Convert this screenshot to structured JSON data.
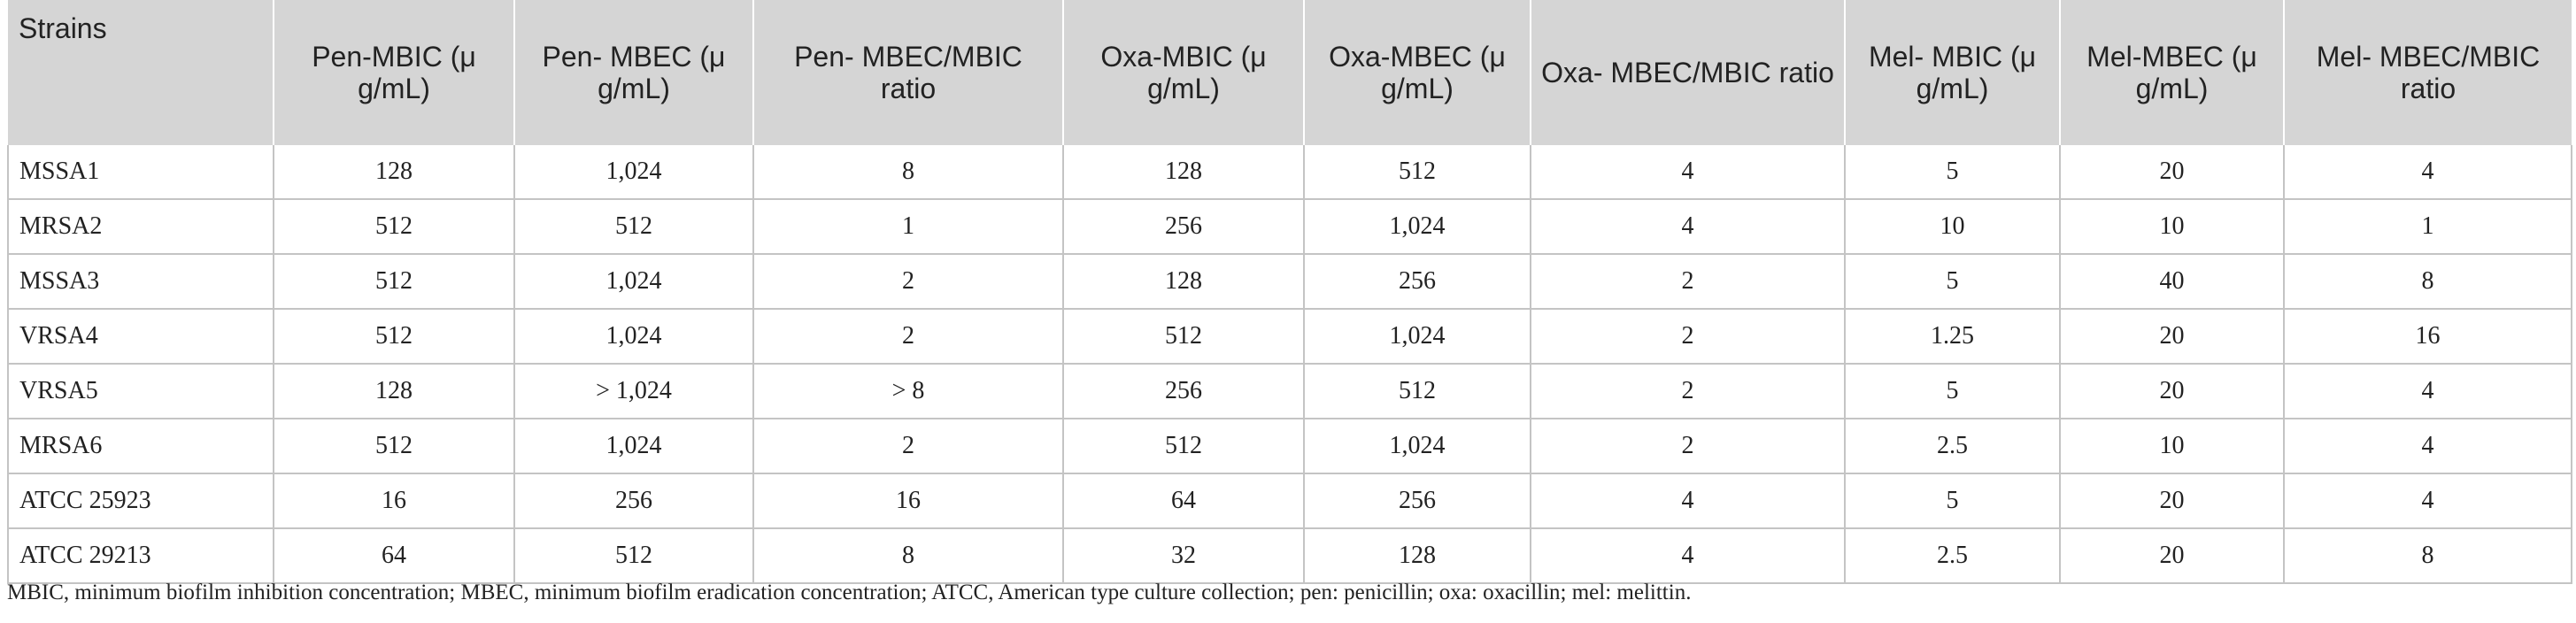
{
  "table": {
    "headers": [
      "Strains",
      "Pen-MBIC (μ g/mL)",
      "Pen- MBEC (μ g/mL)",
      "Pen- MBEC/MBIC ratio",
      "Oxa-MBIC (μ g/mL)",
      "Oxa-MBEC (μ g/mL)",
      "Oxa- MBEC/MBIC ratio",
      "Mel- MBIC (μ g/mL)",
      "Mel-MBEC (μ g/mL)",
      "Mel- MBEC/MBIC ratio"
    ],
    "rows": [
      [
        "MSSA1",
        "128",
        "1,024",
        "8",
        "128",
        "512",
        "4",
        "5",
        "20",
        "4"
      ],
      [
        "MRSA2",
        "512",
        "512",
        "1",
        "256",
        "1,024",
        "4",
        "10",
        "10",
        "1"
      ],
      [
        "MSSA3",
        "512",
        "1,024",
        "2",
        "128",
        "256",
        "2",
        "5",
        "40",
        "8"
      ],
      [
        "VRSA4",
        "512",
        "1,024",
        "2",
        "512",
        "1,024",
        "2",
        "1.25",
        "20",
        "16"
      ],
      [
        "VRSA5",
        "128",
        "> 1,024",
        "> 8",
        "256",
        "512",
        "2",
        "5",
        "20",
        "4"
      ],
      [
        "MRSA6",
        "512",
        "1,024",
        "2",
        "512",
        "1,024",
        "2",
        "2.5",
        "10",
        "4"
      ],
      [
        "ATCC 25923",
        "16",
        "256",
        "16",
        "64",
        "256",
        "4",
        "5",
        "20",
        "4"
      ],
      [
        "ATCC 29213",
        "64",
        "512",
        "8",
        "32",
        "128",
        "4",
        "2.5",
        "20",
        "8"
      ]
    ]
  },
  "footnote": "MBIC, minimum biofilm inhibition concentration; MBEC, minimum biofilm eradication concentration; ATCC, American type culture collection; pen: penicillin; oxa: oxacillin; mel: melittin."
}
